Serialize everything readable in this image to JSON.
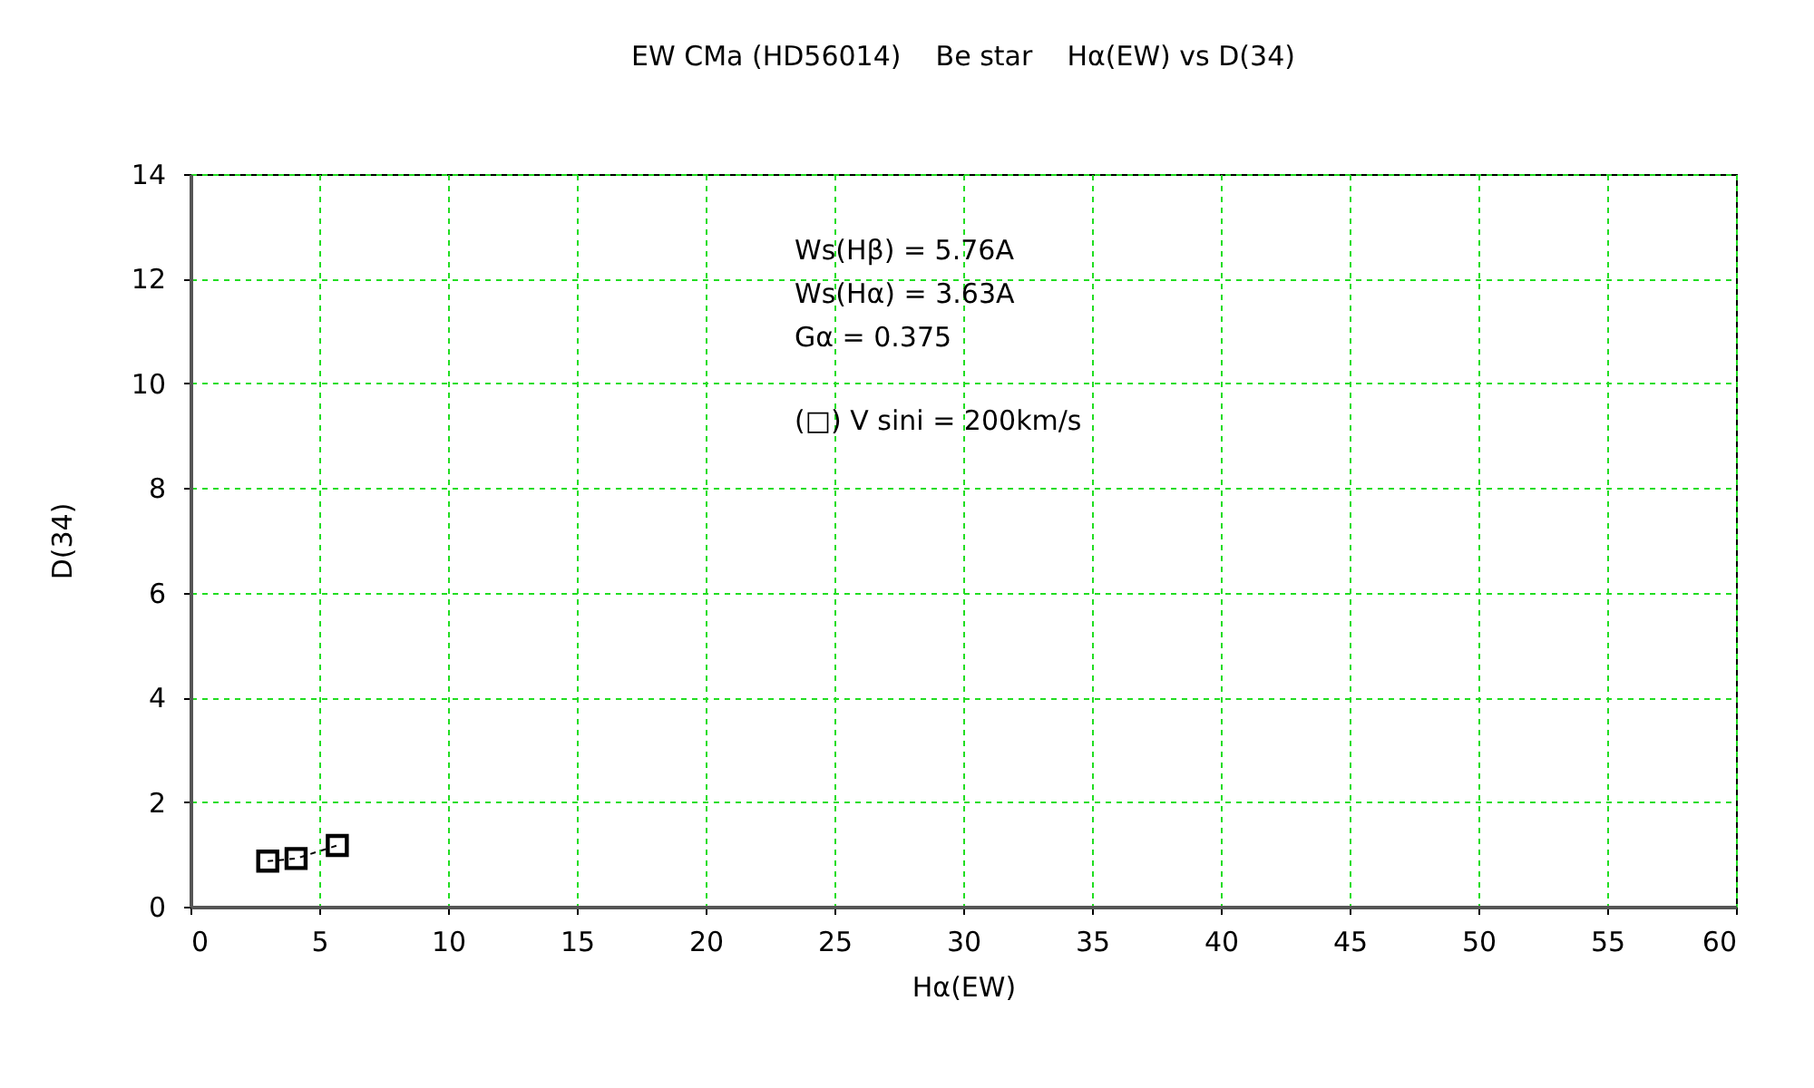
{
  "chart_data": {
    "type": "line",
    "title": "EW CMa (HD56014)    Be star    Hα(EW) vs D(34)",
    "xlabel": "Hα(EW)",
    "ylabel": "D(34)",
    "x": [
      3.0,
      4.1,
      5.7
    ],
    "series": [
      {
        "color": "#000000",
        "values": [
          0.87,
          0.92,
          1.17
        ]
      }
    ],
    "xlim": [
      0,
      60
    ],
    "xticks": [
      0,
      5,
      10,
      15,
      20,
      25,
      30,
      35,
      40,
      45,
      50,
      55,
      60
    ],
    "ylim": [
      0,
      14
    ],
    "yticks": [
      0,
      2,
      4,
      6,
      8,
      10,
      12,
      14
    ],
    "grid": true,
    "marker": "square",
    "line_style": "dashed",
    "annotations": [
      "Ws(Hβ) = 5.76A",
      "Ws(Hα) = 3.63A",
      "Gα = 0.375",
      "(□) V sini = 200km/s"
    ]
  }
}
